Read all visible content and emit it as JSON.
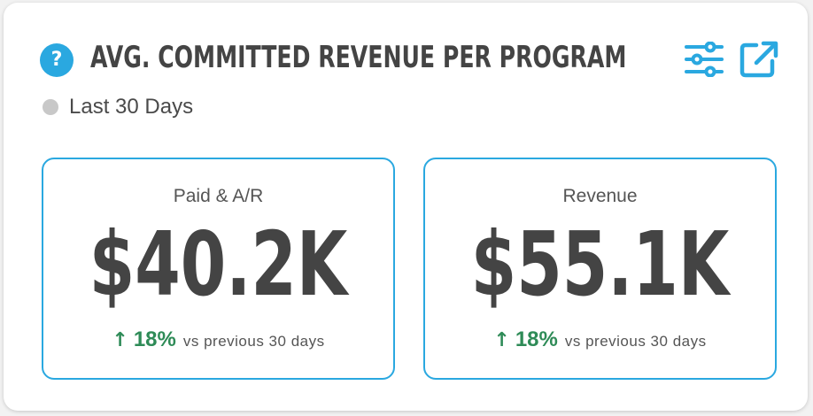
{
  "header": {
    "title": "AVG. COMMITTED REVENUE PER PROGRAM",
    "help_icon_glyph": "?",
    "icons": {
      "help": "help-icon",
      "filter": "sliders-icon",
      "open": "external-link-icon"
    }
  },
  "period": {
    "label": "Last 30 Days"
  },
  "metrics": [
    {
      "label": "Paid & A/R",
      "value": "$40.2K",
      "change": "18%",
      "comparison": "vs previous 30 days"
    },
    {
      "label": "Revenue",
      "value": "$55.1K",
      "change": "18%",
      "comparison": "vs previous 30 days"
    }
  ],
  "colors": {
    "accent": "#2aa8e0",
    "positive": "#2e8b57",
    "text": "#444444",
    "muted_dot": "#c8c8c8"
  }
}
